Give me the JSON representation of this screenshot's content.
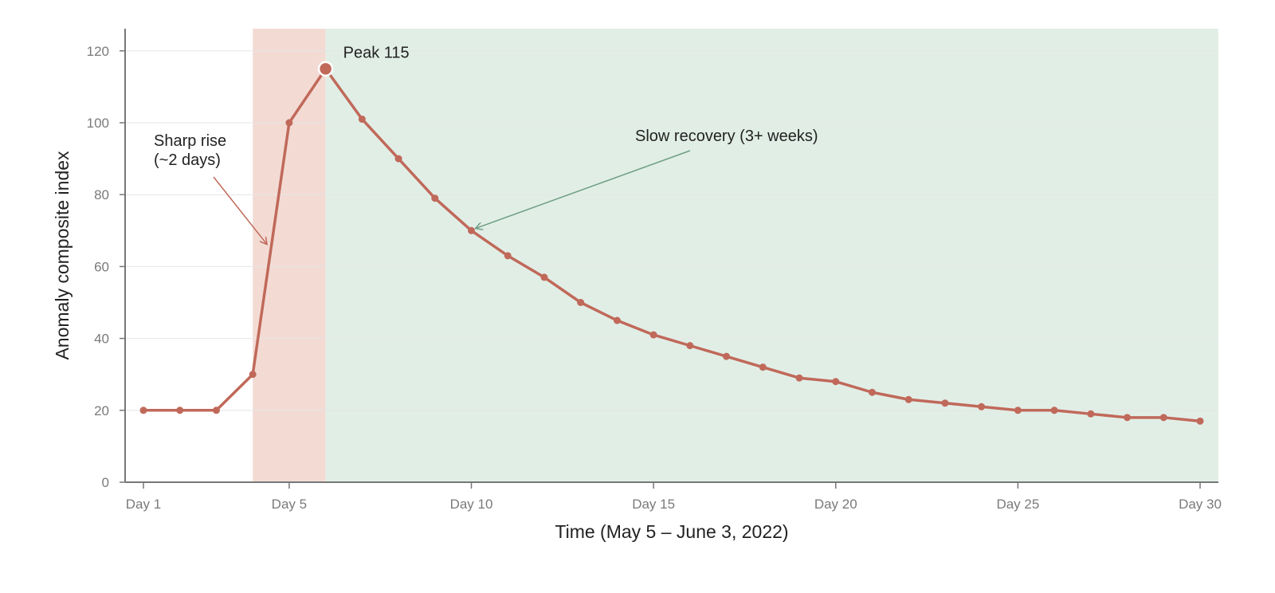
{
  "chart_data": {
    "type": "line",
    "xlabel": "Time (May 5 – June 3, 2022)",
    "ylabel": "Anomaly composite index",
    "ylim": [
      0,
      126
    ],
    "xlim": [
      0.5,
      30.5
    ],
    "yticks": [
      0,
      20,
      40,
      60,
      80,
      100,
      120
    ],
    "xticks": [
      {
        "day": 1,
        "label": "Day 1"
      },
      {
        "day": 5,
        "label": "Day 5"
      },
      {
        "day": 10,
        "label": "Day 10"
      },
      {
        "day": 15,
        "label": "Day 15"
      },
      {
        "day": 20,
        "label": "Day 20"
      },
      {
        "day": 25,
        "label": "Day 25"
      },
      {
        "day": 30,
        "label": "Day 30"
      }
    ],
    "grid": "horizontal",
    "x": [
      1,
      2,
      3,
      4,
      5,
      6,
      7,
      8,
      9,
      10,
      11,
      12,
      13,
      14,
      15,
      16,
      17,
      18,
      19,
      20,
      21,
      22,
      23,
      24,
      25,
      26,
      27,
      28,
      29,
      30
    ],
    "values": [
      20,
      20,
      20,
      30,
      100,
      115,
      101,
      90,
      79,
      70,
      63,
      57,
      50,
      45,
      41,
      38,
      35,
      32,
      29,
      28,
      25,
      23,
      22,
      21,
      20,
      20,
      19,
      18,
      18,
      17
    ],
    "shaded_regions": [
      {
        "kind": "rise",
        "from": 4,
        "to": 6,
        "color": "#f3dbd4"
      },
      {
        "kind": "recovery",
        "from": 6,
        "to": 30.5,
        "color": "#e1eee6"
      }
    ],
    "peak": {
      "day": 6,
      "value": 115,
      "label": "Peak 115"
    },
    "annotations": [
      {
        "kind": "rise",
        "lines": [
          "Sharp rise",
          "(~2 days)"
        ],
        "arrow_color": "#c0695a",
        "target_day": 4.4,
        "target_value": 67
      },
      {
        "kind": "recovery",
        "lines": [
          "Slow recovery (3+ weeks)"
        ],
        "arrow_color": "#6f9f84",
        "target_day": 10,
        "target_value": 70
      }
    ],
    "colors": {
      "line": "#c0695a",
      "axis": "#777777",
      "grid": "#e6e6e6"
    }
  }
}
